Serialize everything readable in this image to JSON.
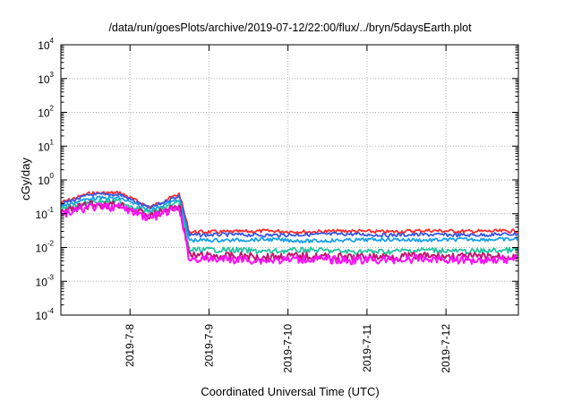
{
  "chart_data": {
    "type": "line",
    "title": "/data/run/goesPlots/archive/2019-07-12/22:00/flux/../bryn/5daysEarth.plot",
    "xlabel": "Coordinated Universal Time (UTC)",
    "ylabel": "cGy/day",
    "yscale": "log",
    "ylim": [
      0.0001,
      10000
    ],
    "xlim": [
      "2019-07-07 03:00",
      "2019-07-12 22:00"
    ],
    "x_ticks": [
      "2019-7-8",
      "2019-7-9",
      "2019-7-10",
      "2019-7-11",
      "2019-7-12"
    ],
    "y_ticks": [
      {
        "base": "10",
        "exp": "-4"
      },
      {
        "base": "10",
        "exp": "-3"
      },
      {
        "base": "10",
        "exp": "-2"
      },
      {
        "base": "10",
        "exp": "-1"
      },
      {
        "base": "10",
        "exp": "0"
      },
      {
        "base": "10",
        "exp": "1"
      },
      {
        "base": "10",
        "exp": "2"
      },
      {
        "base": "10",
        "exp": "3"
      },
      {
        "base": "10",
        "exp": "4"
      }
    ],
    "grid": true,
    "series": [
      {
        "color": "#ff2a2a",
        "x": [
          "2019-07-07 03:00",
          "2019-07-07 12:00",
          "2019-07-07 21:00",
          "2019-07-08 06:00",
          "2019-07-08 15:00",
          "2019-07-08 18:00",
          "2019-07-09 06:00",
          "2019-07-09 18:00",
          "2019-07-10 06:00",
          "2019-07-10 18:00",
          "2019-07-11 06:00",
          "2019-07-11 18:00",
          "2019-07-12 06:00",
          "2019-07-12 22:00"
        ],
        "values": [
          0.22,
          0.42,
          0.43,
          0.16,
          0.4,
          0.03,
          0.03,
          0.032,
          0.03,
          0.032,
          0.03,
          0.033,
          0.031,
          0.032
        ]
      },
      {
        "color": "#3a56e0",
        "x": [
          "2019-07-07 03:00",
          "2019-07-07 12:00",
          "2019-07-07 21:00",
          "2019-07-08 06:00",
          "2019-07-08 15:00",
          "2019-07-08 18:00",
          "2019-07-09 06:00",
          "2019-07-09 18:00",
          "2019-07-10 06:00",
          "2019-07-10 18:00",
          "2019-07-11 06:00",
          "2019-07-11 18:00",
          "2019-07-12 06:00",
          "2019-07-12 22:00"
        ],
        "values": [
          0.2,
          0.38,
          0.38,
          0.15,
          0.36,
          0.024,
          0.025,
          0.024,
          0.025,
          0.026,
          0.024,
          0.025,
          0.024,
          0.026
        ]
      },
      {
        "color": "#1aa0e6",
        "x": [
          "2019-07-07 03:00",
          "2019-07-07 12:00",
          "2019-07-07 21:00",
          "2019-07-08 06:00",
          "2019-07-08 15:00",
          "2019-07-08 18:00",
          "2019-07-09 06:00",
          "2019-07-09 18:00",
          "2019-07-10 06:00",
          "2019-07-10 18:00",
          "2019-07-11 06:00",
          "2019-07-11 18:00",
          "2019-07-12 06:00",
          "2019-07-12 22:00"
        ],
        "values": [
          0.17,
          0.3,
          0.3,
          0.13,
          0.28,
          0.017,
          0.017,
          0.018,
          0.016,
          0.017,
          0.018,
          0.017,
          0.018,
          0.018
        ]
      },
      {
        "color": "#20c4a0",
        "x": [
          "2019-07-07 03:00",
          "2019-07-07 12:00",
          "2019-07-07 21:00",
          "2019-07-08 06:00",
          "2019-07-08 15:00",
          "2019-07-08 18:00",
          "2019-07-09 06:00",
          "2019-07-09 18:00",
          "2019-07-10 06:00",
          "2019-07-10 18:00",
          "2019-07-11 06:00",
          "2019-07-11 18:00",
          "2019-07-12 06:00",
          "2019-07-12 22:00"
        ],
        "values": [
          0.14,
          0.24,
          0.24,
          0.11,
          0.22,
          0.009,
          0.009,
          0.008,
          0.009,
          0.008,
          0.008,
          0.009,
          0.008,
          0.009
        ]
      },
      {
        "color": "#c01870",
        "x": [
          "2019-07-07 03:00",
          "2019-07-07 12:00",
          "2019-07-07 21:00",
          "2019-07-08 06:00",
          "2019-07-08 15:00",
          "2019-07-08 18:00",
          "2019-07-09 06:00",
          "2019-07-09 18:00",
          "2019-07-10 06:00",
          "2019-07-10 18:00",
          "2019-07-11 06:00",
          "2019-07-11 18:00",
          "2019-07-12 06:00",
          "2019-07-12 22:00"
        ],
        "values": [
          0.12,
          0.2,
          0.2,
          0.09,
          0.19,
          0.0062,
          0.006,
          0.0058,
          0.006,
          0.0055,
          0.0058,
          0.006,
          0.0057,
          0.006
        ]
      },
      {
        "color": "#ff10ff",
        "x": [
          "2019-07-07 03:00",
          "2019-07-07 12:00",
          "2019-07-07 21:00",
          "2019-07-08 06:00",
          "2019-07-08 15:00",
          "2019-07-08 18:00",
          "2019-07-09 06:00",
          "2019-07-09 18:00",
          "2019-07-10 06:00",
          "2019-07-10 18:00",
          "2019-07-11 06:00",
          "2019-07-11 18:00",
          "2019-07-12 06:00",
          "2019-07-12 22:00"
        ],
        "values": [
          0.1,
          0.17,
          0.17,
          0.08,
          0.16,
          0.005,
          0.0048,
          0.0045,
          0.005,
          0.0045,
          0.0047,
          0.005,
          0.0046,
          0.005
        ]
      }
    ]
  }
}
